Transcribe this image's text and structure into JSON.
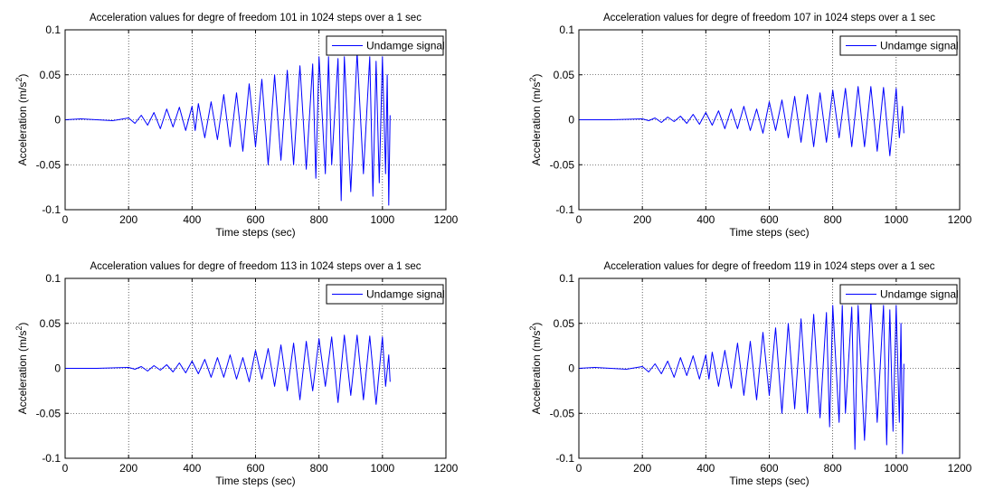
{
  "chart_data": [
    {
      "type": "line",
      "title": "Acceleration values for degre of freedom 101 in 1024 steps over a 1 sec",
      "xlabel": "Time steps (sec)",
      "ylabel_main": "Acceleration (m/s",
      "ylabel_sup": "2",
      "ylabel_close": ")",
      "xlim": [
        0,
        1200
      ],
      "ylim": [
        -0.1,
        0.1
      ],
      "xticks": [
        0,
        200,
        400,
        600,
        800,
        1000,
        1200
      ],
      "yticks": [
        -0.1,
        -0.05,
        0,
        0.05,
        0.1
      ],
      "xtick_labels": [
        "0",
        "200",
        "400",
        "600",
        "800",
        "1000",
        "1200"
      ],
      "ytick_labels": [
        "-0.1",
        "-0.05",
        "0",
        "0.05",
        "0.1"
      ],
      "grid": true,
      "legend_position": "top-right",
      "series": [
        {
          "name": "Undamge signal",
          "color": "#0000ff",
          "x": [
            0,
            50,
            100,
            150,
            200,
            220,
            240,
            260,
            280,
            300,
            320,
            340,
            360,
            380,
            400,
            410,
            420,
            440,
            460,
            480,
            500,
            520,
            540,
            560,
            580,
            600,
            620,
            640,
            660,
            680,
            700,
            720,
            740,
            760,
            780,
            790,
            800,
            820,
            830,
            840,
            860,
            870,
            880,
            900,
            920,
            940,
            960,
            970,
            980,
            990,
            1000,
            1010,
            1015,
            1020,
            1024
          ],
          "y": [
            0,
            0.001,
            0,
            -0.001,
            0.002,
            -0.004,
            0.005,
            -0.006,
            0.008,
            -0.01,
            0.012,
            -0.008,
            0.014,
            -0.012,
            0.015,
            -0.012,
            0.018,
            -0.02,
            0.02,
            -0.022,
            0.028,
            -0.03,
            0.03,
            -0.035,
            0.04,
            -0.03,
            0.045,
            -0.05,
            0.05,
            -0.045,
            0.055,
            -0.05,
            0.06,
            -0.055,
            0.062,
            -0.065,
            0.07,
            -0.06,
            0.07,
            -0.05,
            0.068,
            -0.09,
            0.07,
            -0.08,
            0.075,
            -0.06,
            0.07,
            -0.085,
            0.065,
            -0.07,
            0.07,
            -0.06,
            0.05,
            -0.095,
            0.005
          ]
        }
      ]
    },
    {
      "type": "line",
      "title": "Acceleration values for degre of freedom 107 in 1024 steps over a 1 sec",
      "xlabel": "Time steps (sec)",
      "ylabel_main": "Acceleration (m/s",
      "ylabel_sup": "2",
      "ylabel_close": ")",
      "xlim": [
        0,
        1200
      ],
      "ylim": [
        -0.1,
        0.1
      ],
      "xticks": [
        0,
        200,
        400,
        600,
        800,
        1000,
        1200
      ],
      "yticks": [
        -0.1,
        -0.05,
        0,
        0.05,
        0.1
      ],
      "xtick_labels": [
        "0",
        "200",
        "400",
        "600",
        "800",
        "1000",
        "1200"
      ],
      "ytick_labels": [
        "-0.1",
        "-0.05",
        "0",
        "0.05",
        "0.1"
      ],
      "grid": true,
      "legend_position": "top-right",
      "series": [
        {
          "name": "Undamge signal",
          "color": "#0000ff",
          "x": [
            0,
            100,
            200,
            220,
            240,
            260,
            280,
            300,
            320,
            340,
            360,
            380,
            400,
            420,
            440,
            460,
            480,
            500,
            520,
            540,
            560,
            580,
            600,
            620,
            640,
            660,
            680,
            700,
            720,
            740,
            760,
            780,
            800,
            820,
            840,
            860,
            880,
            900,
            920,
            940,
            960,
            980,
            1000,
            1010,
            1020,
            1024
          ],
          "y": [
            0,
            0,
            0.001,
            -0.001,
            0.002,
            -0.003,
            0.003,
            -0.002,
            0.004,
            -0.004,
            0.006,
            -0.005,
            0.008,
            -0.006,
            0.01,
            -0.01,
            0.012,
            -0.01,
            0.015,
            -0.012,
            0.012,
            -0.015,
            0.02,
            -0.012,
            0.022,
            -0.02,
            0.026,
            -0.025,
            0.028,
            -0.03,
            0.03,
            -0.025,
            0.033,
            -0.02,
            0.035,
            -0.03,
            0.037,
            -0.03,
            0.037,
            -0.035,
            0.036,
            -0.04,
            0.035,
            -0.02,
            0.015,
            -0.015
          ]
        }
      ]
    },
    {
      "type": "line",
      "title": "Acceleration values for degre of freedom 113 in 1024 steps over a 1 sec",
      "xlabel": "Time steps (sec)",
      "ylabel_main": "Acceleration (m/s",
      "ylabel_sup": "2",
      "ylabel_close": ")",
      "xlim": [
        0,
        1200
      ],
      "ylim": [
        -0.1,
        0.1
      ],
      "xticks": [
        0,
        200,
        400,
        600,
        800,
        1000,
        1200
      ],
      "yticks": [
        -0.1,
        -0.05,
        0,
        0.05,
        0.1
      ],
      "xtick_labels": [
        "0",
        "200",
        "400",
        "600",
        "800",
        "1000",
        "1200"
      ],
      "ytick_labels": [
        "-0.1",
        "-0.05",
        "0",
        "0.05",
        "0.1"
      ],
      "grid": true,
      "legend_position": "top-right",
      "series": [
        {
          "name": "Undamge signal",
          "color": "#0000ff",
          "x": [
            0,
            100,
            200,
            220,
            240,
            260,
            280,
            300,
            320,
            340,
            360,
            380,
            400,
            420,
            440,
            460,
            480,
            500,
            520,
            540,
            560,
            580,
            600,
            620,
            640,
            660,
            680,
            700,
            720,
            740,
            760,
            780,
            800,
            820,
            840,
            860,
            880,
            900,
            920,
            940,
            960,
            980,
            1000,
            1010,
            1020,
            1024
          ],
          "y": [
            0,
            0,
            0.001,
            -0.001,
            0.002,
            -0.003,
            0.003,
            -0.002,
            0.004,
            -0.004,
            0.006,
            -0.005,
            0.008,
            -0.006,
            0.01,
            -0.01,
            0.012,
            -0.01,
            0.015,
            -0.012,
            0.012,
            -0.015,
            0.02,
            -0.012,
            0.022,
            -0.02,
            0.026,
            -0.025,
            0.028,
            -0.035,
            0.03,
            -0.025,
            0.033,
            -0.02,
            0.035,
            -0.038,
            0.037,
            -0.03,
            0.037,
            -0.035,
            0.036,
            -0.04,
            0.035,
            -0.02,
            0.015,
            -0.015
          ]
        }
      ]
    },
    {
      "type": "line",
      "title": "Acceleration values for degre of freedom 119 in 1024 steps over a 1 sec",
      "xlabel": "Time steps (sec)",
      "ylabel_main": "Acceleration (m/s",
      "ylabel_sup": "2",
      "ylabel_close": ")",
      "xlim": [
        0,
        1200
      ],
      "ylim": [
        -0.1,
        0.1
      ],
      "xticks": [
        0,
        200,
        400,
        600,
        800,
        1000,
        1200
      ],
      "yticks": [
        -0.1,
        -0.05,
        0,
        0.05,
        0.1
      ],
      "xtick_labels": [
        "0",
        "200",
        "400",
        "600",
        "800",
        "1000",
        "1200"
      ],
      "ytick_labels": [
        "-0.1",
        "-0.05",
        "0",
        "0.05",
        "0.1"
      ],
      "grid": true,
      "legend_position": "top-right",
      "series": [
        {
          "name": "Undamge signal",
          "color": "#0000ff",
          "x": [
            0,
            50,
            100,
            150,
            200,
            220,
            240,
            260,
            280,
            300,
            320,
            340,
            360,
            380,
            400,
            410,
            420,
            440,
            460,
            480,
            500,
            520,
            540,
            560,
            580,
            600,
            620,
            640,
            660,
            680,
            700,
            720,
            740,
            760,
            780,
            790,
            800,
            820,
            830,
            840,
            860,
            870,
            880,
            900,
            920,
            940,
            960,
            970,
            980,
            990,
            1000,
            1010,
            1015,
            1020,
            1024
          ],
          "y": [
            0,
            0.001,
            0,
            -0.001,
            0.002,
            -0.004,
            0.005,
            -0.006,
            0.008,
            -0.01,
            0.012,
            -0.008,
            0.014,
            -0.012,
            0.015,
            -0.012,
            0.018,
            -0.02,
            0.02,
            -0.022,
            0.028,
            -0.03,
            0.03,
            -0.035,
            0.04,
            -0.03,
            0.045,
            -0.05,
            0.05,
            -0.045,
            0.055,
            -0.05,
            0.06,
            -0.055,
            0.062,
            -0.065,
            0.07,
            -0.06,
            0.07,
            -0.05,
            0.068,
            -0.09,
            0.07,
            -0.08,
            0.075,
            -0.06,
            0.07,
            -0.085,
            0.065,
            -0.07,
            0.07,
            -0.06,
            0.05,
            -0.095,
            0.005
          ]
        }
      ]
    }
  ]
}
